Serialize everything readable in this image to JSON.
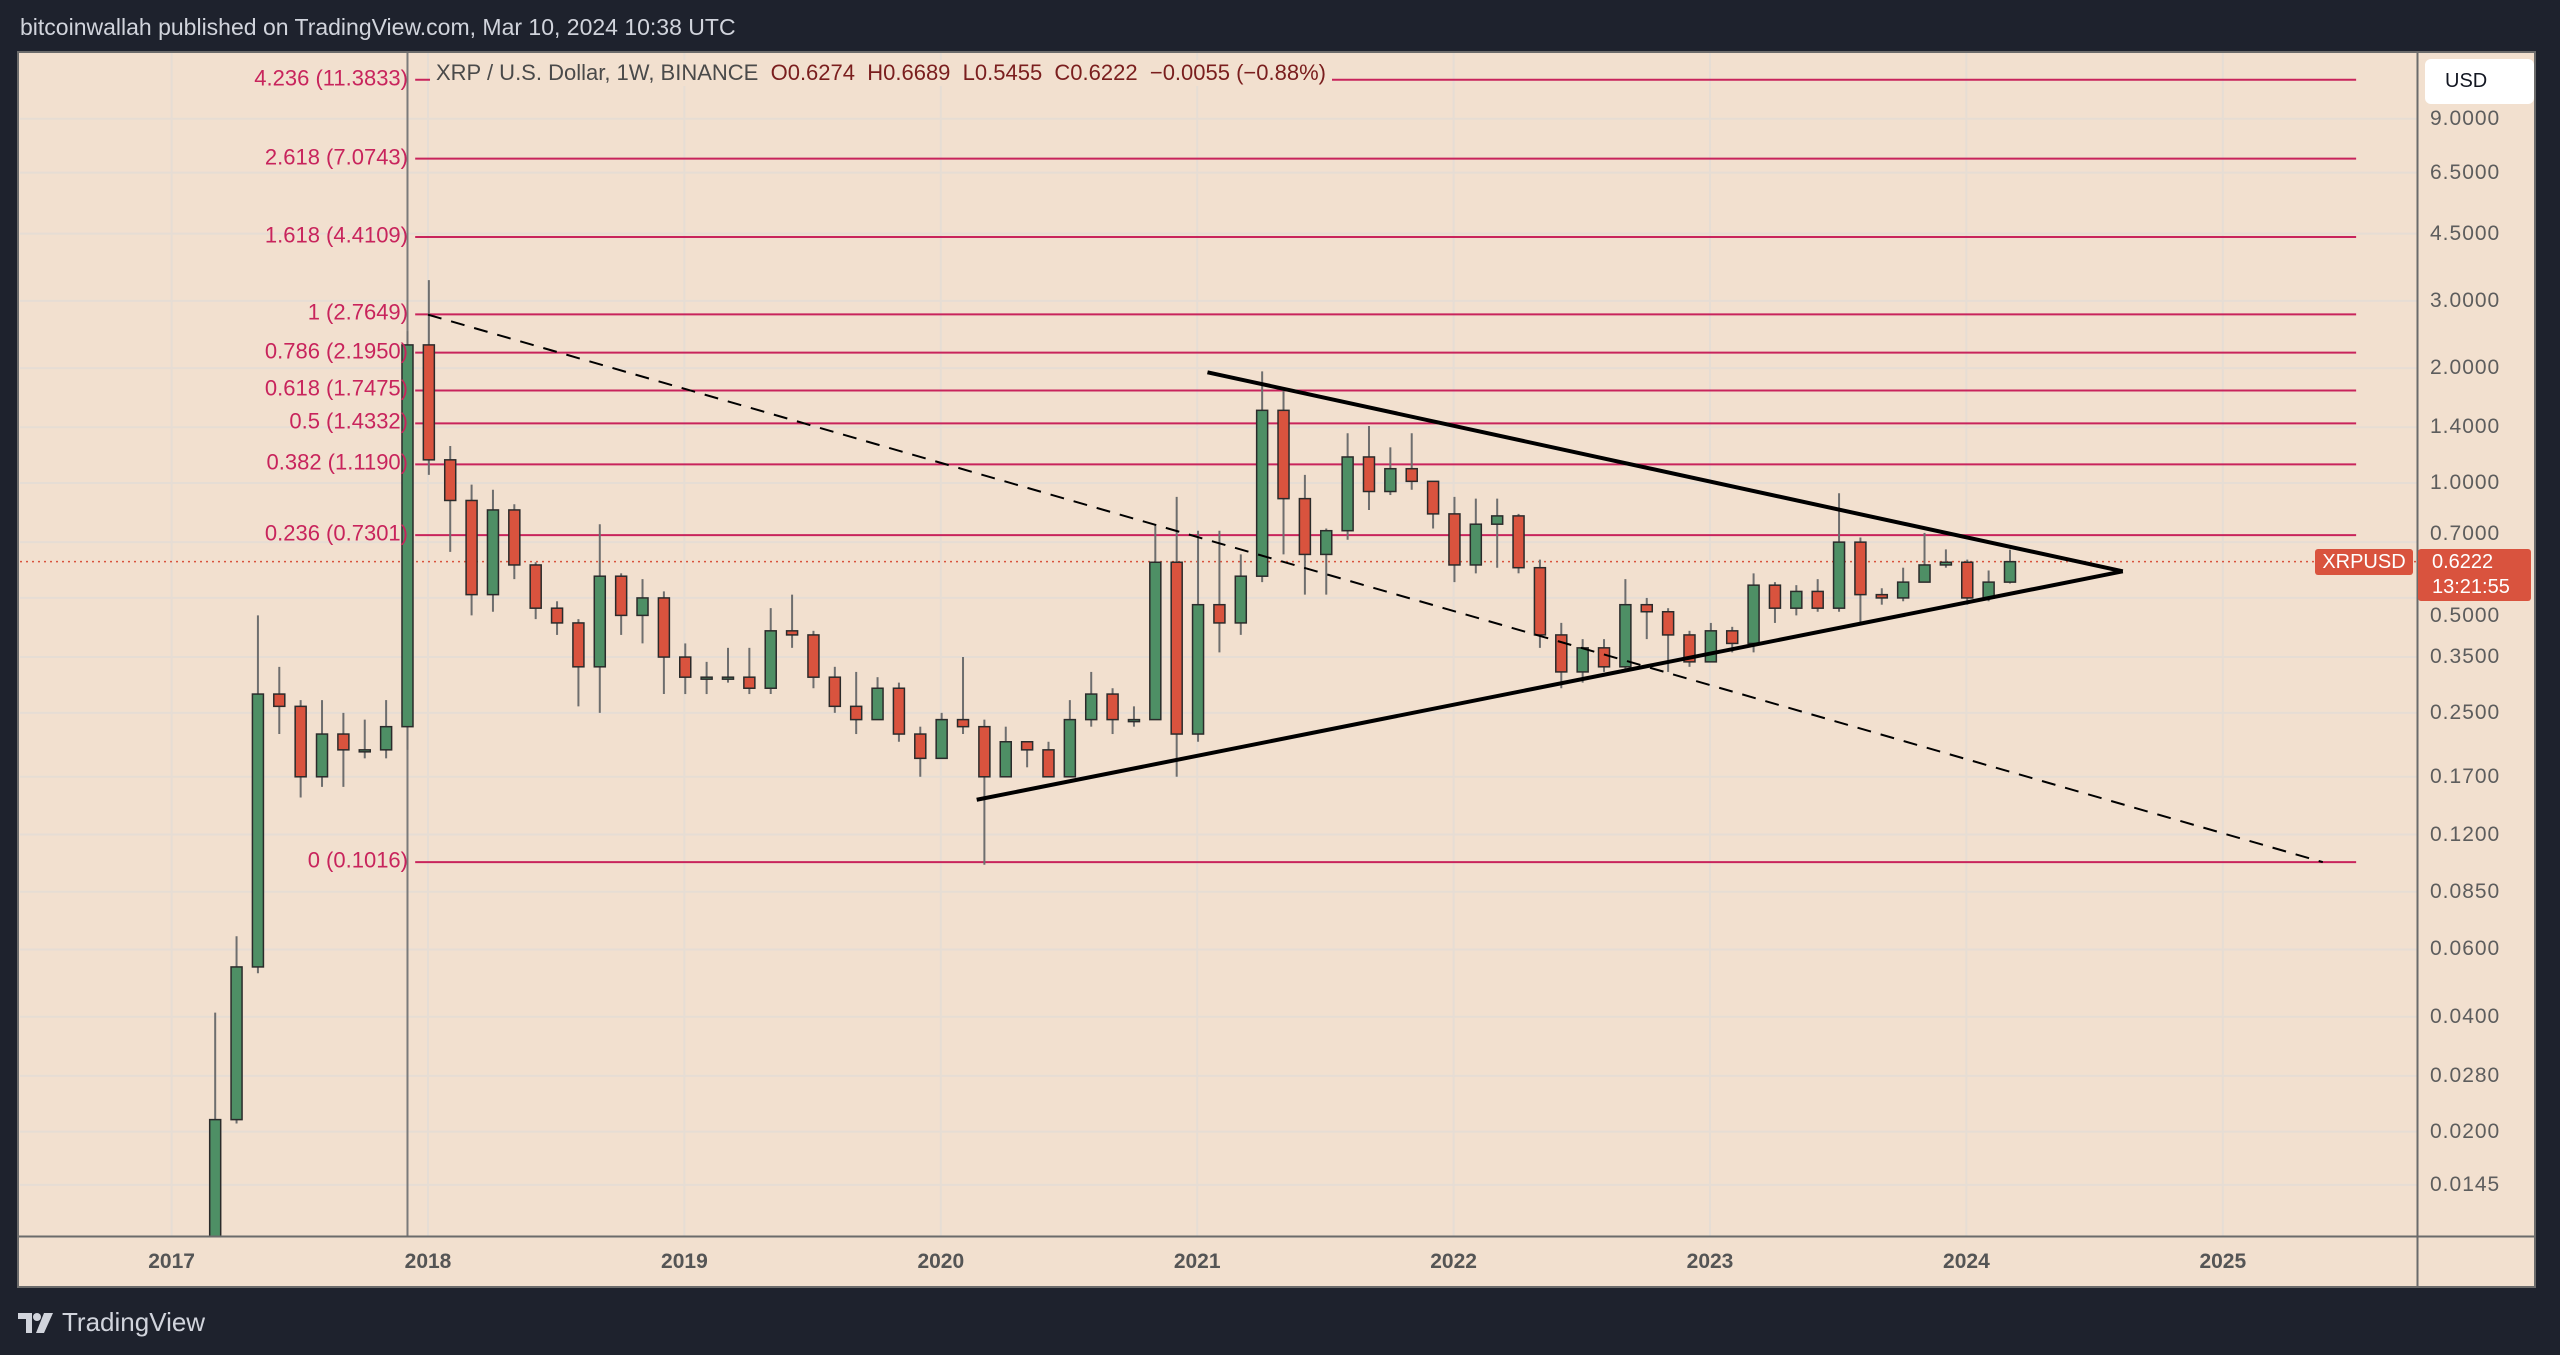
{
  "publish_line": "bitcoinwallah published on TradingView.com, Mar 10, 2024 10:38 UTC",
  "legend": {
    "symbol": "XRP / U.S. Dollar, 1W, BINANCE",
    "open": "O0.6274",
    "high": "H0.6689",
    "low": "L0.5455",
    "close": "C0.6222",
    "change": "−0.0055 (−0.88%)"
  },
  "currency_button": "USD",
  "symbol_tag": "XRPUSD",
  "last_price": "0.6222",
  "countdown": "13:21:55",
  "footer_brand": "TradingView",
  "colors": {
    "up": "#4e8f65",
    "down": "#d9533e",
    "fib": "#c8245c",
    "background": "#f2e0cf",
    "frame": "#1e222d"
  },
  "chart_data": {
    "type": "candlestick",
    "title": "XRP / U.S. Dollar, 1W, BINANCE",
    "y_scale": "log",
    "ylim": [
      0.012,
      11.5
    ],
    "xlim": [
      2016.85,
      2025.75
    ],
    "price_ticks": [
      "9.0000",
      "6.5000",
      "4.5000",
      "3.0000",
      "2.0000",
      "1.4000",
      "1.0000",
      "0.7000",
      "0.5000",
      "0.3500",
      "0.2500",
      "0.1700",
      "0.1200",
      "0.0850",
      "0.0600",
      "0.0400",
      "0.0280",
      "0.0200",
      "0.0145"
    ],
    "time_ticks": [
      "2017",
      "2018",
      "2019",
      "2020",
      "2021",
      "2022",
      "2023",
      "2024",
      "2025"
    ],
    "last_price": 0.6222,
    "fib_levels": [
      {
        "label": "4.236 (11.3833)",
        "price": 11.3833
      },
      {
        "label": "2.618 (7.0743)",
        "price": 7.0743
      },
      {
        "label": "1.618 (4.4109)",
        "price": 4.4109
      },
      {
        "label": "1 (2.7649)",
        "price": 2.7649
      },
      {
        "label": "0.786 (2.1950)",
        "price": 2.195
      },
      {
        "label": "0.618 (1.7475)",
        "price": 1.7475
      },
      {
        "label": "0.5 (1.4332)",
        "price": 1.4332
      },
      {
        "label": "0.382 (1.1190)",
        "price": 1.119
      },
      {
        "label": "0.236 (0.7301)",
        "price": 0.7301
      },
      {
        "label": "0 (0.1016)",
        "price": 0.1016
      }
    ],
    "fib_span": [
      2017.95,
      2025.52
    ],
    "trendlines": [
      {
        "name": "upper-resistance",
        "style": "solid",
        "from": [
          2021.04,
          1.95
        ],
        "to": [
          2024.61,
          0.587
        ]
      },
      {
        "name": "lower-support",
        "style": "solid",
        "from": [
          2020.14,
          0.148
        ],
        "to": [
          2024.61,
          0.587
        ]
      },
      {
        "name": "dashed-diagonal",
        "style": "dashed",
        "from": [
          2018.0,
          2.76
        ],
        "to": [
          2025.39,
          0.1016
        ]
      }
    ],
    "vertical_marker": 2017.92,
    "candles_start": 2017.17,
    "candles_monthly_ohlc": [
      [
        0.0066,
        0.041,
        0.0062,
        0.0215
      ],
      [
        0.0215,
        0.065,
        0.021,
        0.054
      ],
      [
        0.054,
        0.45,
        0.052,
        0.28
      ],
      [
        0.28,
        0.33,
        0.22,
        0.26
      ],
      [
        0.26,
        0.27,
        0.15,
        0.17
      ],
      [
        0.17,
        0.27,
        0.16,
        0.22
      ],
      [
        0.22,
        0.25,
        0.16,
        0.2
      ],
      [
        0.2,
        0.24,
        0.19,
        0.2
      ],
      [
        0.2,
        0.27,
        0.19,
        0.23
      ],
      [
        0.23,
        2.5,
        0.2,
        2.3
      ],
      [
        2.3,
        3.4,
        1.05,
        1.15
      ],
      [
        1.15,
        1.25,
        0.66,
        0.9
      ],
      [
        0.9,
        0.99,
        0.45,
        0.51
      ],
      [
        0.51,
        0.96,
        0.46,
        0.85
      ],
      [
        0.85,
        0.88,
        0.56,
        0.61
      ],
      [
        0.61,
        0.62,
        0.44,
        0.47
      ],
      [
        0.47,
        0.49,
        0.4,
        0.43
      ],
      [
        0.43,
        0.44,
        0.26,
        0.33
      ],
      [
        0.33,
        0.78,
        0.25,
        0.57
      ],
      [
        0.57,
        0.58,
        0.4,
        0.45
      ],
      [
        0.45,
        0.56,
        0.38,
        0.5
      ],
      [
        0.5,
        0.52,
        0.28,
        0.35
      ],
      [
        0.35,
        0.38,
        0.28,
        0.31
      ],
      [
        0.31,
        0.34,
        0.28,
        0.31
      ],
      [
        0.31,
        0.37,
        0.3,
        0.31
      ],
      [
        0.31,
        0.37,
        0.28,
        0.29
      ],
      [
        0.29,
        0.47,
        0.28,
        0.41
      ],
      [
        0.41,
        0.51,
        0.37,
        0.4
      ],
      [
        0.4,
        0.41,
        0.29,
        0.31
      ],
      [
        0.31,
        0.33,
        0.25,
        0.26
      ],
      [
        0.26,
        0.32,
        0.22,
        0.24
      ],
      [
        0.24,
        0.31,
        0.24,
        0.29
      ],
      [
        0.29,
        0.3,
        0.21,
        0.22
      ],
      [
        0.22,
        0.23,
        0.17,
        0.19
      ],
      [
        0.19,
        0.25,
        0.19,
        0.24
      ],
      [
        0.24,
        0.35,
        0.22,
        0.23
      ],
      [
        0.23,
        0.24,
        0.1,
        0.17
      ],
      [
        0.17,
        0.23,
        0.17,
        0.21
      ],
      [
        0.21,
        0.21,
        0.18,
        0.2
      ],
      [
        0.2,
        0.21,
        0.17,
        0.17
      ],
      [
        0.17,
        0.27,
        0.17,
        0.24
      ],
      [
        0.24,
        0.32,
        0.23,
        0.28
      ],
      [
        0.28,
        0.29,
        0.22,
        0.24
      ],
      [
        0.24,
        0.26,
        0.23,
        0.24
      ],
      [
        0.24,
        0.78,
        0.24,
        0.62
      ],
      [
        0.62,
        0.92,
        0.17,
        0.22
      ],
      [
        0.22,
        0.75,
        0.21,
        0.48
      ],
      [
        0.48,
        0.75,
        0.36,
        0.43
      ],
      [
        0.43,
        0.65,
        0.4,
        0.57
      ],
      [
        0.57,
        1.96,
        0.55,
        1.55
      ],
      [
        1.55,
        1.77,
        0.65,
        0.91
      ],
      [
        0.91,
        1.05,
        0.51,
        0.65
      ],
      [
        0.65,
        0.76,
        0.51,
        0.75
      ],
      [
        0.75,
        1.35,
        0.71,
        1.17
      ],
      [
        1.17,
        1.41,
        0.85,
        0.95
      ],
      [
        0.95,
        1.24,
        0.93,
        1.09
      ],
      [
        1.09,
        1.35,
        0.96,
        1.01
      ],
      [
        1.01,
        1.0,
        0.76,
        0.83
      ],
      [
        0.83,
        0.92,
        0.55,
        0.61
      ],
      [
        0.61,
        0.91,
        0.58,
        0.78
      ],
      [
        0.78,
        0.91,
        0.6,
        0.82
      ],
      [
        0.82,
        0.83,
        0.58,
        0.6
      ],
      [
        0.6,
        0.63,
        0.37,
        0.4
      ],
      [
        0.4,
        0.43,
        0.29,
        0.32
      ],
      [
        0.32,
        0.39,
        0.3,
        0.37
      ],
      [
        0.37,
        0.39,
        0.32,
        0.33
      ],
      [
        0.33,
        0.56,
        0.32,
        0.48
      ],
      [
        0.48,
        0.5,
        0.39,
        0.46
      ],
      [
        0.46,
        0.47,
        0.32,
        0.4
      ],
      [
        0.4,
        0.41,
        0.33,
        0.34
      ],
      [
        0.34,
        0.43,
        0.34,
        0.41
      ],
      [
        0.41,
        0.42,
        0.36,
        0.38
      ],
      [
        0.38,
        0.58,
        0.36,
        0.54
      ],
      [
        0.54,
        0.55,
        0.43,
        0.47
      ],
      [
        0.47,
        0.54,
        0.45,
        0.52
      ],
      [
        0.52,
        0.56,
        0.46,
        0.47
      ],
      [
        0.47,
        0.94,
        0.46,
        0.7
      ],
      [
        0.7,
        0.72,
        0.43,
        0.51
      ],
      [
        0.51,
        0.53,
        0.48,
        0.5
      ],
      [
        0.5,
        0.6,
        0.49,
        0.55
      ],
      [
        0.55,
        0.74,
        0.55,
        0.61
      ],
      [
        0.61,
        0.67,
        0.6,
        0.62
      ],
      [
        0.62,
        0.63,
        0.48,
        0.5
      ],
      [
        0.5,
        0.59,
        0.49,
        0.55
      ],
      [
        0.55,
        0.6689,
        0.5455,
        0.6222
      ]
    ]
  }
}
